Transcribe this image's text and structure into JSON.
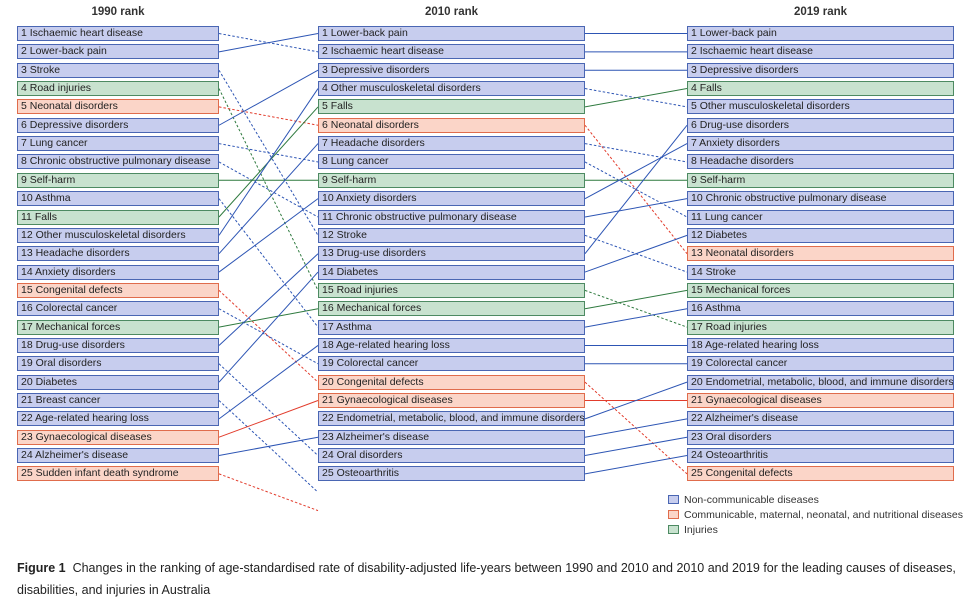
{
  "headers": {
    "col1": "1990 rank",
    "col2": "2010 rank",
    "col3": "2019 rank"
  },
  "categories": {
    "ncd": {
      "label": "Non-communicable diseases",
      "fill": "#c7cdee",
      "border": "#4a66b3",
      "line": "#2d55b4"
    },
    "cmn": {
      "label": "Communicable, maternal, neonatal, and nutritional diseases",
      "fill": "#fbd5c8",
      "border": "#e06c4c",
      "line": "#e23c2c"
    },
    "inj": {
      "label": "Injuries",
      "fill": "#c8e2cf",
      "border": "#4d8a62",
      "line": "#2f7a3f"
    }
  },
  "columns": [
    {
      "key": "col1",
      "items": [
        {
          "label": "1 Ischaemic heart disease",
          "cat": "ncd"
        },
        {
          "label": "2 Lower-back pain",
          "cat": "ncd"
        },
        {
          "label": "3 Stroke",
          "cat": "ncd"
        },
        {
          "label": "4 Road injuries",
          "cat": "inj"
        },
        {
          "label": "5 Neonatal disorders",
          "cat": "cmn"
        },
        {
          "label": "6 Depressive disorders",
          "cat": "ncd"
        },
        {
          "label": "7 Lung cancer",
          "cat": "ncd"
        },
        {
          "label": "8 Chronic obstructive pulmonary disease",
          "cat": "ncd"
        },
        {
          "label": "9 Self-harm",
          "cat": "inj"
        },
        {
          "label": "10 Asthma",
          "cat": "ncd"
        },
        {
          "label": "11 Falls",
          "cat": "inj"
        },
        {
          "label": "12 Other musculoskeletal disorders",
          "cat": "ncd"
        },
        {
          "label": "13 Headache disorders",
          "cat": "ncd"
        },
        {
          "label": "14 Anxiety disorders",
          "cat": "ncd"
        },
        {
          "label": "15 Congenital defects",
          "cat": "cmn"
        },
        {
          "label": "16 Colorectal cancer",
          "cat": "ncd"
        },
        {
          "label": "17 Mechanical forces",
          "cat": "inj"
        },
        {
          "label": "18 Drug-use disorders",
          "cat": "ncd"
        },
        {
          "label": "19 Oral disorders",
          "cat": "ncd"
        },
        {
          "label": "20 Diabetes",
          "cat": "ncd"
        },
        {
          "label": "21 Breast cancer",
          "cat": "ncd"
        },
        {
          "label": "22 Age-related hearing loss",
          "cat": "ncd"
        },
        {
          "label": "23 Gynaecological diseases",
          "cat": "cmn"
        },
        {
          "label": "24 Alzheimer's disease",
          "cat": "ncd"
        },
        {
          "label": "25 Sudden infant death syndrome",
          "cat": "cmn"
        }
      ]
    },
    {
      "key": "col2",
      "items": [
        {
          "label": "1 Lower-back pain",
          "cat": "ncd"
        },
        {
          "label": "2 Ischaemic heart disease",
          "cat": "ncd"
        },
        {
          "label": "3 Depressive disorders",
          "cat": "ncd"
        },
        {
          "label": "4 Other musculoskeletal disorders",
          "cat": "ncd"
        },
        {
          "label": "5 Falls",
          "cat": "inj"
        },
        {
          "label": "6 Neonatal disorders",
          "cat": "cmn"
        },
        {
          "label": "7 Headache disorders",
          "cat": "ncd"
        },
        {
          "label": "8 Lung cancer",
          "cat": "ncd"
        },
        {
          "label": "9 Self-harm",
          "cat": "inj"
        },
        {
          "label": "10 Anxiety disorders",
          "cat": "ncd"
        },
        {
          "label": "11 Chronic obstructive pulmonary disease",
          "cat": "ncd"
        },
        {
          "label": "12 Stroke",
          "cat": "ncd"
        },
        {
          "label": "13 Drug-use disorders",
          "cat": "ncd"
        },
        {
          "label": "14 Diabetes",
          "cat": "ncd"
        },
        {
          "label": "15 Road injuries",
          "cat": "inj"
        },
        {
          "label": "16 Mechanical forces",
          "cat": "inj"
        },
        {
          "label": "17 Asthma",
          "cat": "ncd"
        },
        {
          "label": "18 Age-related hearing loss",
          "cat": "ncd"
        },
        {
          "label": "19 Colorectal cancer",
          "cat": "ncd"
        },
        {
          "label": "20 Congenital defects",
          "cat": "cmn"
        },
        {
          "label": "21 Gynaecological diseases",
          "cat": "cmn"
        },
        {
          "label": "22 Endometrial, metabolic, blood, and immune disorders",
          "cat": "ncd"
        },
        {
          "label": "23 Alzheimer's disease",
          "cat": "ncd"
        },
        {
          "label": "24 Oral disorders",
          "cat": "ncd"
        },
        {
          "label": "25 Osteoarthritis",
          "cat": "ncd"
        }
      ]
    },
    {
      "key": "col3",
      "items": [
        {
          "label": "1 Lower-back pain",
          "cat": "ncd"
        },
        {
          "label": "2 Ischaemic heart disease",
          "cat": "ncd"
        },
        {
          "label": "3 Depressive disorders",
          "cat": "ncd"
        },
        {
          "label": "4 Falls",
          "cat": "inj"
        },
        {
          "label": "5 Other musculoskeletal disorders",
          "cat": "ncd"
        },
        {
          "label": "6 Drug-use disorders",
          "cat": "ncd"
        },
        {
          "label": "7 Anxiety disorders",
          "cat": "ncd"
        },
        {
          "label": "8 Headache disorders",
          "cat": "ncd"
        },
        {
          "label": "9 Self-harm",
          "cat": "inj"
        },
        {
          "label": "10 Chronic obstructive pulmonary disease",
          "cat": "ncd"
        },
        {
          "label": "11 Lung cancer",
          "cat": "ncd"
        },
        {
          "label": "12 Diabetes",
          "cat": "ncd"
        },
        {
          "label": "13 Neonatal disorders",
          "cat": "cmn"
        },
        {
          "label": "14 Stroke",
          "cat": "ncd"
        },
        {
          "label": "15 Mechanical forces",
          "cat": "inj"
        },
        {
          "label": "16 Asthma",
          "cat": "ncd"
        },
        {
          "label": "17 Road injuries",
          "cat": "inj"
        },
        {
          "label": "18 Age-related hearing loss",
          "cat": "ncd"
        },
        {
          "label": "19 Colorectal cancer",
          "cat": "ncd"
        },
        {
          "label": "20 Endometrial, metabolic, blood, and immune disorders",
          "cat": "ncd"
        },
        {
          "label": "21 Gynaecological diseases",
          "cat": "cmn"
        },
        {
          "label": "22 Alzheimer's disease",
          "cat": "ncd"
        },
        {
          "label": "23 Oral disorders",
          "cat": "ncd"
        },
        {
          "label": "24 Osteoarthritis",
          "cat": "ncd"
        },
        {
          "label": "25 Congenital defects",
          "cat": "cmn"
        }
      ]
    }
  ],
  "links_1990_2010": [
    {
      "from": 1,
      "to": 2,
      "cat": "ncd"
    },
    {
      "from": 2,
      "to": 1,
      "cat": "ncd"
    },
    {
      "from": 3,
      "to": 12,
      "cat": "ncd"
    },
    {
      "from": 4,
      "to": 15,
      "cat": "inj"
    },
    {
      "from": 5,
      "to": 6,
      "cat": "cmn"
    },
    {
      "from": 6,
      "to": 3,
      "cat": "ncd"
    },
    {
      "from": 7,
      "to": 8,
      "cat": "ncd"
    },
    {
      "from": 8,
      "to": 11,
      "cat": "ncd"
    },
    {
      "from": 9,
      "to": 9,
      "cat": "inj"
    },
    {
      "from": 10,
      "to": 17,
      "cat": "ncd"
    },
    {
      "from": 11,
      "to": 5,
      "cat": "inj"
    },
    {
      "from": 12,
      "to": 4,
      "cat": "ncd"
    },
    {
      "from": 13,
      "to": 7,
      "cat": "ncd"
    },
    {
      "from": 14,
      "to": 10,
      "cat": "ncd"
    },
    {
      "from": 15,
      "to": 20,
      "cat": "cmn"
    },
    {
      "from": 16,
      "to": 19,
      "cat": "ncd"
    },
    {
      "from": 17,
      "to": 16,
      "cat": "inj"
    },
    {
      "from": 18,
      "to": 13,
      "cat": "ncd"
    },
    {
      "from": 19,
      "to": 24,
      "cat": "ncd"
    },
    {
      "from": 20,
      "to": 14,
      "cat": "ncd"
    },
    {
      "from": 21,
      "to": 26,
      "cat": "ncd"
    },
    {
      "from": 22,
      "to": 18,
      "cat": "ncd"
    },
    {
      "from": 23,
      "to": 21,
      "cat": "cmn"
    },
    {
      "from": 24,
      "to": 23,
      "cat": "ncd"
    },
    {
      "from": 25,
      "to": 27,
      "cat": "cmn"
    }
  ],
  "links_2010_2019": [
    {
      "from": 1,
      "to": 1,
      "cat": "ncd"
    },
    {
      "from": 2,
      "to": 2,
      "cat": "ncd"
    },
    {
      "from": 3,
      "to": 3,
      "cat": "ncd"
    },
    {
      "from": 4,
      "to": 5,
      "cat": "ncd"
    },
    {
      "from": 5,
      "to": 4,
      "cat": "inj"
    },
    {
      "from": 6,
      "to": 13,
      "cat": "cmn"
    },
    {
      "from": 7,
      "to": 8,
      "cat": "ncd"
    },
    {
      "from": 8,
      "to": 11,
      "cat": "ncd"
    },
    {
      "from": 9,
      "to": 9,
      "cat": "inj"
    },
    {
      "from": 10,
      "to": 7,
      "cat": "ncd"
    },
    {
      "from": 11,
      "to": 10,
      "cat": "ncd"
    },
    {
      "from": 12,
      "to": 14,
      "cat": "ncd"
    },
    {
      "from": 13,
      "to": 6,
      "cat": "ncd"
    },
    {
      "from": 14,
      "to": 12,
      "cat": "ncd"
    },
    {
      "from": 15,
      "to": 17,
      "cat": "inj"
    },
    {
      "from": 16,
      "to": 15,
      "cat": "inj"
    },
    {
      "from": 17,
      "to": 16,
      "cat": "ncd"
    },
    {
      "from": 18,
      "to": 18,
      "cat": "ncd"
    },
    {
      "from": 19,
      "to": 19,
      "cat": "ncd"
    },
    {
      "from": 20,
      "to": 25,
      "cat": "cmn"
    },
    {
      "from": 21,
      "to": 21,
      "cat": "cmn"
    },
    {
      "from": 22,
      "to": 20,
      "cat": "ncd"
    },
    {
      "from": 23,
      "to": 22,
      "cat": "ncd"
    },
    {
      "from": 24,
      "to": 23,
      "cat": "ncd"
    },
    {
      "from": 25,
      "to": 24,
      "cat": "ncd"
    }
  ],
  "caption": {
    "label": "Figure 1",
    "text": "Changes in the ranking of age-standardised rate of disability-adjusted life-years between 1990 and 2010 and 2010 and 2019 for the leading causes of diseases, disabilities, and injuries in Australia"
  }
}
